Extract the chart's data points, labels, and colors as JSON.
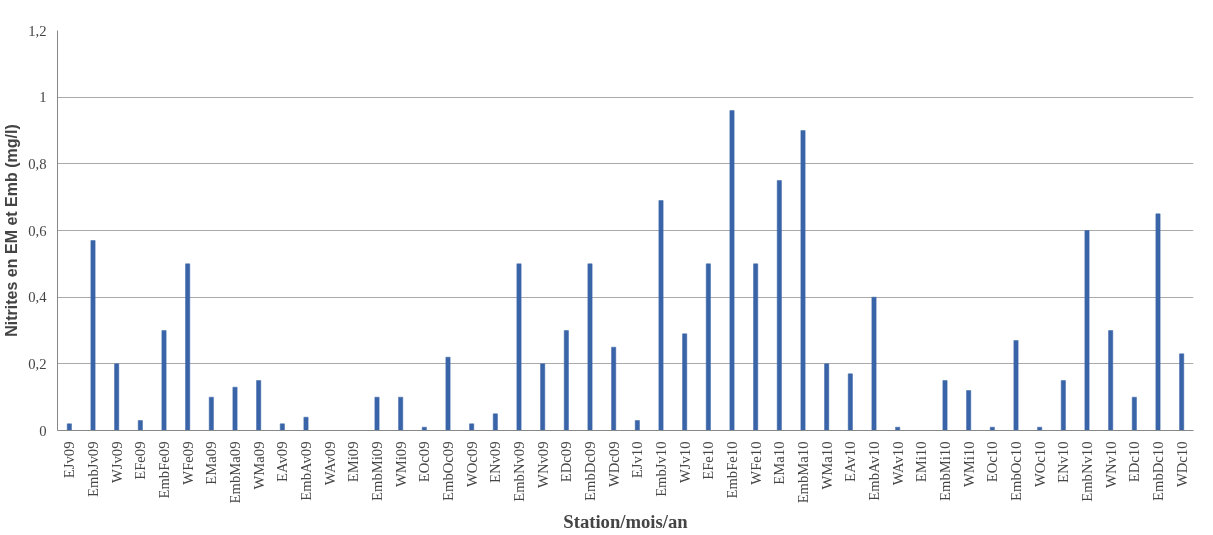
{
  "chart_data": {
    "type": "bar",
    "xlabel": "Station/mois/an",
    "ylabel": "Nitrites en EM et Emb (mg/l)",
    "categories": [
      "EJv09",
      "EmbJv09",
      "WJv09",
      "EFe09",
      "EmbFe09",
      "WFe09",
      "EMa09",
      "EmbMa09",
      "WMa09",
      "EAv09",
      "EmbAv09",
      "WAv09",
      "EMi09",
      "EmbMi09",
      "WMi09",
      "EOc09",
      "EmbOc09",
      "WOc09",
      "ENv09",
      "EmbNv09",
      "WNv09",
      "EDc09",
      "EmbDc09",
      "WDc09",
      "EJv10",
      "EmbJv10",
      "WJv10",
      "EFe10",
      "EmbFe10",
      "WFe10",
      "EMa10",
      "EmbMa10",
      "WMa10",
      "EAv10",
      "EmbAv10",
      "WAv10",
      "EMi10",
      "EmbMi10",
      "WMi10",
      "EOc10",
      "EmbOc10",
      "WOc10",
      "ENv10",
      "EmbNv10",
      "WNv10",
      "EDc10",
      "EmbDc10",
      "WDc10"
    ],
    "values": [
      0.02,
      0.57,
      0.2,
      0.03,
      0.3,
      0.5,
      0.1,
      0.13,
      0.15,
      0.02,
      0.04,
      0,
      0,
      0.1,
      0.1,
      0.01,
      0.22,
      0.02,
      0.05,
      0.5,
      0.2,
      0.3,
      0.5,
      0.25,
      0.03,
      0.69,
      0.29,
      0.5,
      0.96,
      0.5,
      0.75,
      0.9,
      0.2,
      0.17,
      0.4,
      0.01,
      0,
      0.15,
      0.12,
      0.01,
      0.27,
      0.01,
      0.15,
      0.6,
      0.3,
      0.1,
      0.65,
      0.23
    ],
    "color": "#3a64a8",
    "ylim": [
      0,
      1.2
    ],
    "yticks": [
      0,
      {
        "value": 0.2,
        "label": "0,2"
      },
      {
        "value": 0.4,
        "label": "0,4"
      },
      {
        "value": 0.6,
        "label": "0,6"
      },
      {
        "value": 0.8,
        "label": "0,8"
      },
      1,
      {
        "value": 1.2,
        "label": "1,2"
      }
    ],
    "grid": "y"
  }
}
